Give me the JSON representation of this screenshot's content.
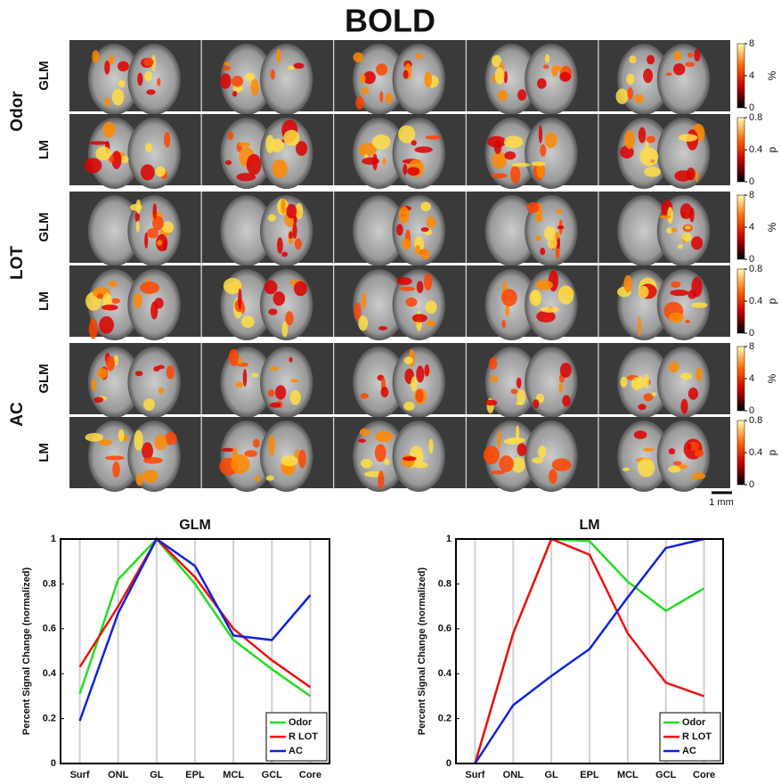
{
  "figure": {
    "title": "BOLD",
    "groups": [
      "Odor",
      "LOT",
      "AC"
    ],
    "methods": [
      "GLM",
      "LM"
    ],
    "colorbars": {
      "glm": {
        "ticks": [
          0,
          4,
          8
        ],
        "unit": "%"
      },
      "lm": {
        "ticks": [
          0,
          0.4,
          0.8
        ],
        "unit": "p"
      }
    },
    "scale_bar": "1 mm"
  },
  "chart_data": [
    {
      "type": "line",
      "title": "GLM",
      "y_label": "Percent Signal Change (normalized)",
      "categories": [
        "Surf",
        "ONL",
        "GL",
        "EPL",
        "MCL",
        "GCL",
        "Core"
      ],
      "series": [
        {
          "name": "Odor",
          "color": "#22dd22",
          "values": [
            0.31,
            0.82,
            1.0,
            0.8,
            0.55,
            0.42,
            0.3
          ]
        },
        {
          "name": "R LOT",
          "color": "#ee1111",
          "values": [
            0.43,
            0.7,
            1.0,
            0.83,
            0.6,
            0.46,
            0.34
          ]
        },
        {
          "name": "AC",
          "color": "#1122dd",
          "values": [
            0.19,
            0.67,
            1.0,
            0.88,
            0.57,
            0.55,
            0.75
          ]
        }
      ],
      "ylim": [
        0,
        1
      ],
      "yticks": [
        0,
        0.2,
        0.4,
        0.6,
        0.8,
        1
      ],
      "grid": true,
      "legend": "lower-right"
    },
    {
      "type": "line",
      "title": "LM",
      "y_label": "Percent Signal Change (normalized)",
      "categories": [
        "Surf",
        "ONL",
        "GL",
        "EPL",
        "MCL",
        "GCL",
        "Core"
      ],
      "series": [
        {
          "name": "Odor",
          "color": "#22dd22",
          "values": [
            0,
            0.58,
            1.0,
            0.99,
            0.81,
            0.68,
            0.78
          ]
        },
        {
          "name": "R LOT",
          "color": "#ee1111",
          "values": [
            0,
            0.58,
            1.0,
            0.93,
            0.58,
            0.36,
            0.3
          ]
        },
        {
          "name": "AC",
          "color": "#1122dd",
          "values": [
            0,
            0.26,
            0.39,
            0.51,
            0.74,
            0.96,
            1.0
          ]
        }
      ],
      "ylim": [
        0,
        1
      ],
      "yticks": [
        0,
        0.2,
        0.4,
        0.6,
        0.8,
        1
      ],
      "grid": true,
      "legend": "lower-right"
    }
  ]
}
